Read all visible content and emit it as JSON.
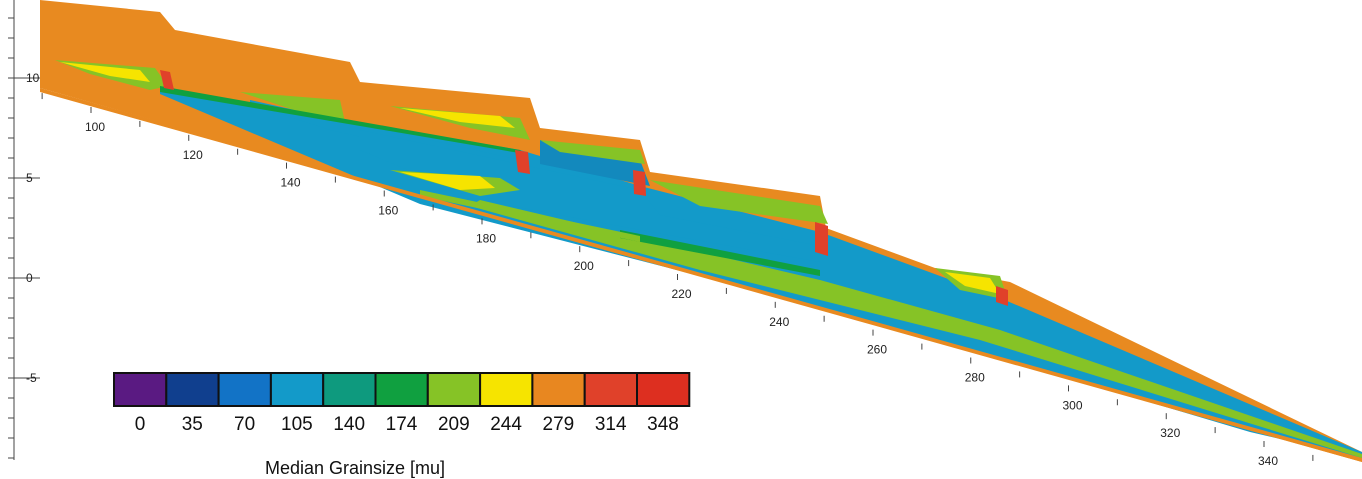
{
  "chart_data": {
    "type": "heatmap",
    "view": "3d-perspective-cross-section",
    "x_ticks": [
      100,
      120,
      140,
      160,
      180,
      200,
      220,
      240,
      260,
      280,
      300,
      320,
      340
    ],
    "z_ticks": [
      10,
      5,
      0,
      -5
    ],
    "colorbar": {
      "title": "Median Grainsize [mu]",
      "values": [
        0,
        35,
        70,
        105,
        140,
        174,
        209,
        244,
        279,
        314,
        348
      ],
      "colors": [
        "#5a1a82",
        "#103f8e",
        "#1273c6",
        "#139ac9",
        "#0e9a7e",
        "#10a040",
        "#86c326",
        "#f6e400",
        "#e88720",
        "#e0412a",
        "#dd2f20"
      ]
    },
    "surface_colors": {
      "upper_layer": "#e88a20",
      "main_layer": "#139ac9",
      "lens": "#86c326",
      "lens_core": "#f6e400",
      "rim": "#e0412a"
    }
  }
}
